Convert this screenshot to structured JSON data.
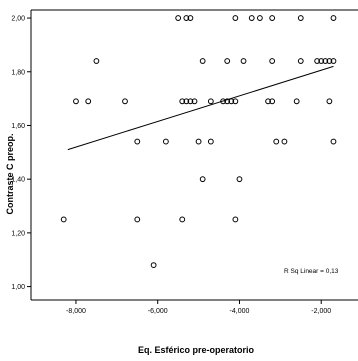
{
  "chart_data": {
    "type": "scatter",
    "xlabel": "Eq. Esférico pre-operatorio",
    "ylabel": "Contraste C preop.",
    "xlim": [
      -9.1,
      -1.1
    ],
    "ylim": [
      0.95,
      2.03
    ],
    "x_ticks": [
      -8,
      -6,
      -4,
      -2
    ],
    "x_tick_labels": [
      "-8,000",
      "-6,000",
      "-4,000",
      "-2,000"
    ],
    "y_ticks": [
      1.0,
      1.2,
      1.4,
      1.6,
      1.8,
      2.0
    ],
    "y_tick_labels": [
      "1,00",
      "1,20",
      "1,40",
      "1,60",
      "1,80",
      "2,00"
    ],
    "grid": false,
    "annotation": "R Sq Linear = 0,13",
    "fit_line": {
      "x": [
        -8.2,
        -1.7
      ],
      "y": [
        1.51,
        1.82
      ]
    },
    "marker_color": "#000000",
    "series": [
      {
        "values": [
          {
            "x": -5.5,
            "y": 2.0
          },
          {
            "x": -5.3,
            "y": 2.0
          },
          {
            "x": -5.2,
            "y": 2.0
          },
          {
            "x": -4.1,
            "y": 2.0
          },
          {
            "x": -3.7,
            "y": 2.0
          },
          {
            "x": -3.5,
            "y": 2.0
          },
          {
            "x": -3.2,
            "y": 2.0
          },
          {
            "x": -2.5,
            "y": 2.0
          },
          {
            "x": -1.7,
            "y": 2.0
          },
          {
            "x": -7.5,
            "y": 1.84
          },
          {
            "x": -4.9,
            "y": 1.84
          },
          {
            "x": -4.3,
            "y": 1.84
          },
          {
            "x": -3.9,
            "y": 1.84
          },
          {
            "x": -3.2,
            "y": 1.84
          },
          {
            "x": -2.5,
            "y": 1.84
          },
          {
            "x": -2.1,
            "y": 1.84
          },
          {
            "x": -2.0,
            "y": 1.84
          },
          {
            "x": -1.9,
            "y": 1.84
          },
          {
            "x": -1.8,
            "y": 1.84
          },
          {
            "x": -1.7,
            "y": 1.84
          },
          {
            "x": -8.0,
            "y": 1.69
          },
          {
            "x": -7.7,
            "y": 1.69
          },
          {
            "x": -6.8,
            "y": 1.69
          },
          {
            "x": -5.4,
            "y": 1.69
          },
          {
            "x": -5.3,
            "y": 1.69
          },
          {
            "x": -5.2,
            "y": 1.69
          },
          {
            "x": -5.1,
            "y": 1.69
          },
          {
            "x": -4.7,
            "y": 1.69
          },
          {
            "x": -4.4,
            "y": 1.69
          },
          {
            "x": -4.3,
            "y": 1.69
          },
          {
            "x": -4.2,
            "y": 1.69
          },
          {
            "x": -4.1,
            "y": 1.69
          },
          {
            "x": -3.3,
            "y": 1.69
          },
          {
            "x": -3.2,
            "y": 1.69
          },
          {
            "x": -2.6,
            "y": 1.69
          },
          {
            "x": -1.8,
            "y": 1.69
          },
          {
            "x": -6.5,
            "y": 1.54
          },
          {
            "x": -5.8,
            "y": 1.54
          },
          {
            "x": -5.0,
            "y": 1.54
          },
          {
            "x": -4.7,
            "y": 1.54
          },
          {
            "x": -3.1,
            "y": 1.54
          },
          {
            "x": -2.9,
            "y": 1.54
          },
          {
            "x": -1.7,
            "y": 1.54
          },
          {
            "x": -4.9,
            "y": 1.4
          },
          {
            "x": -4.0,
            "y": 1.4
          },
          {
            "x": -8.3,
            "y": 1.25
          },
          {
            "x": -6.5,
            "y": 1.25
          },
          {
            "x": -5.4,
            "y": 1.25
          },
          {
            "x": -4.1,
            "y": 1.25
          },
          {
            "x": -6.1,
            "y": 1.08
          }
        ]
      }
    ]
  }
}
